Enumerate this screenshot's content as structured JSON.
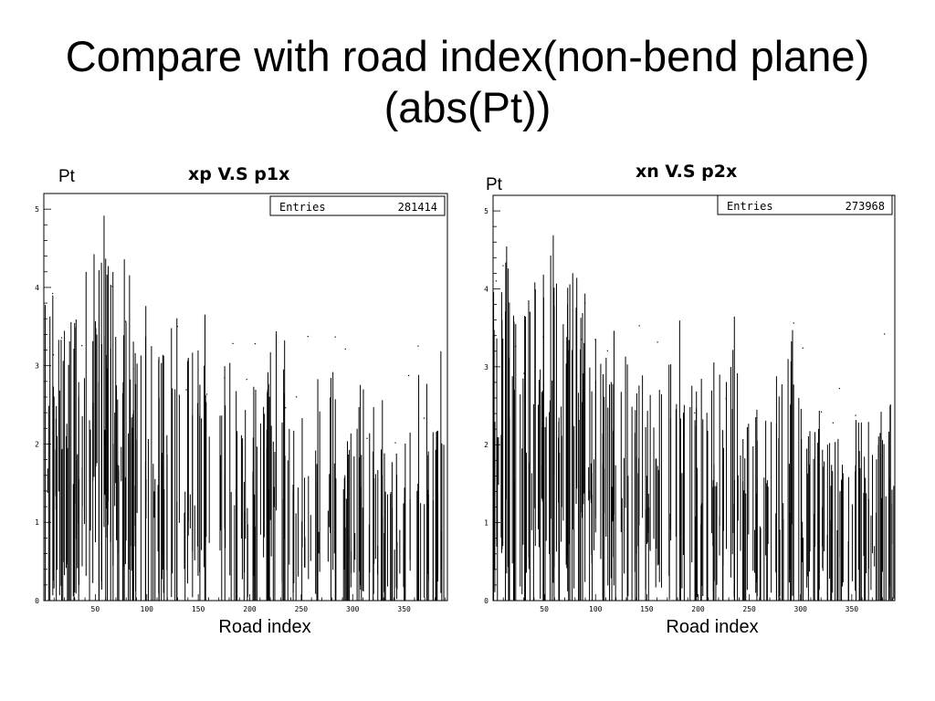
{
  "slide": {
    "title": "Compare with road index(non-bend plane)(abs(Pt))"
  },
  "chart_data": [
    {
      "type": "scatter",
      "title": "xp V.S p1x",
      "xlabel": "Road index",
      "ylabel": "Pt",
      "xlim": [
        0,
        392
      ],
      "ylim": [
        0,
        5.2
      ],
      "x_ticks": [
        50,
        100,
        150,
        200,
        250,
        300,
        350
      ],
      "y_ticks": [
        0,
        1,
        2,
        3,
        4,
        5
      ],
      "stats": {
        "label": "Entries",
        "value": "281414"
      },
      "grid": false,
      "x": [
        5,
        12,
        20,
        27,
        35,
        45,
        52,
        58,
        63,
        68,
        75,
        82,
        90,
        98,
        108,
        118,
        128,
        140,
        150,
        160,
        175,
        185,
        195,
        205,
        215,
        222,
        235,
        245,
        255,
        265,
        280,
        292,
        300,
        310,
        320,
        330,
        340,
        350,
        360,
        370,
        378,
        385
      ],
      "y": [
        1.5,
        1.6,
        1.4,
        1.3,
        1.4,
        1.6,
        1.8,
        2.0,
        1.9,
        1.7,
        1.6,
        1.5,
        1.4,
        1.3,
        1.3,
        1.2,
        1.2,
        1.1,
        1.0,
        1.1,
        1.0,
        1.0,
        0.9,
        0.9,
        0.9,
        1.2,
        0.8,
        0.8,
        0.7,
        0.8,
        1.0,
        0.6,
        0.6,
        0.5,
        0.6,
        0.5,
        0.5,
        0.6,
        0.6,
        0.7,
        0.6,
        0.7
      ]
    },
    {
      "type": "scatter",
      "title": "xn V.S p2x",
      "xlabel": "Road index",
      "ylabel": "Pt",
      "xlim": [
        0,
        392
      ],
      "ylim": [
        0,
        5.2
      ],
      "x_ticks": [
        50,
        100,
        150,
        200,
        250,
        300,
        350
      ],
      "y_ticks": [
        0,
        1,
        2,
        3,
        4,
        5
      ],
      "stats": {
        "label": "Entries",
        "value": "273968"
      },
      "grid": false,
      "x": [
        5,
        12,
        20,
        28,
        36,
        45,
        52,
        60,
        68,
        75,
        82,
        90,
        98,
        108,
        118,
        128,
        140,
        150,
        160,
        175,
        185,
        195,
        205,
        215,
        225,
        235,
        245,
        258,
        268,
        280,
        290,
        300,
        310,
        320,
        330,
        340,
        350,
        360,
        370,
        380,
        388
      ],
      "y": [
        1.6,
        1.7,
        1.5,
        1.4,
        1.5,
        1.6,
        1.7,
        1.8,
        1.7,
        1.6,
        1.5,
        1.4,
        1.3,
        1.2,
        1.2,
        1.2,
        1.1,
        1.1,
        1.0,
        1.0,
        1.0,
        0.9,
        0.9,
        0.9,
        1.0,
        1.1,
        0.9,
        0.8,
        0.8,
        0.9,
        1.0,
        0.8,
        0.7,
        0.7,
        0.6,
        0.6,
        0.6,
        0.7,
        0.7,
        0.8,
        0.8
      ]
    }
  ]
}
